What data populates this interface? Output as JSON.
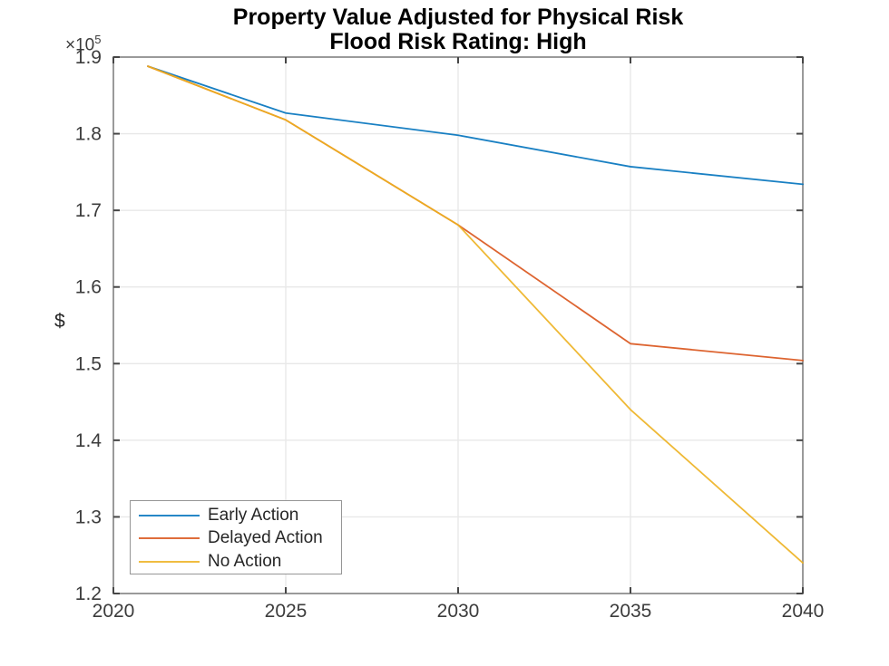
{
  "chart_data": {
    "type": "line",
    "title": "Property Value Adjusted for Physical Risk",
    "subtitle": "Flood Risk Rating: High",
    "ylabel": "$",
    "y_multiplier_base": "×10",
    "y_multiplier_exp": "5",
    "x": [
      2021,
      2025,
      2030,
      2035,
      2040
    ],
    "series": [
      {
        "name": "Early Action",
        "color": "#0072BD",
        "values": [
          188800,
          182700,
          179800,
          175700,
          173400
        ]
      },
      {
        "name": "Delayed Action",
        "color": "#D95319",
        "values": [
          188800,
          181800,
          168100,
          152600,
          150400
        ]
      },
      {
        "name": "No Action",
        "color": "#EDB120",
        "values": [
          188800,
          181800,
          168100,
          144000,
          124000
        ]
      }
    ],
    "xlim": [
      2020,
      2040
    ],
    "ylim": [
      120000,
      190000
    ],
    "xtick_labels": [
      "2020",
      "2025",
      "2030",
      "2035",
      "2040"
    ],
    "ytick_labels": [
      "1.2",
      "1.3",
      "1.4",
      "1.5",
      "1.6",
      "1.7",
      "1.8",
      "1.9"
    ],
    "grid": true,
    "legend_position": "lower-left"
  },
  "colors": {
    "axis_box": "#9a9a9a",
    "tick_mark": "#464646",
    "tick_label": "#3c3c3c",
    "grid_line": "#e8e8e8",
    "title_text": "#000000",
    "background": "#ffffff"
  }
}
